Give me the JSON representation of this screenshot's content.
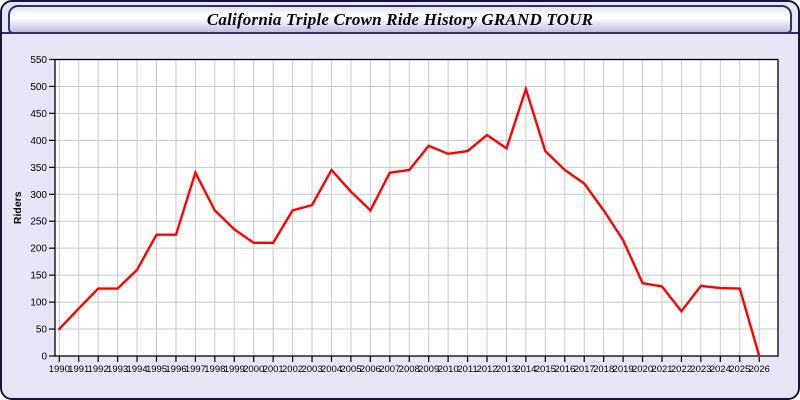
{
  "title_bar": {
    "title": "California Triple Crown Ride History GRAND TOUR"
  },
  "colors": {
    "window_background": "#E6E6F7",
    "window_border": "#16163E",
    "titlebar_border": "#30306B",
    "plot_background": "#FFFFFF",
    "plot_border": "#000000",
    "gridline": "#C9C9C9",
    "line": "#FF0000",
    "text": "#000000"
  },
  "chart_data": {
    "type": "line",
    "title": "California Triple Crown Ride History GRAND TOUR",
    "xlabel": "",
    "ylabel": "Riders",
    "series_name": "Riders",
    "x": [
      1990,
      1991,
      1992,
      1993,
      1994,
      1995,
      1996,
      1997,
      1998,
      1999,
      2000,
      2001,
      2002,
      2003,
      2004,
      2005,
      2006,
      2007,
      2008,
      2009,
      2010,
      2011,
      2012,
      2013,
      2014,
      2015,
      2016,
      2017,
      2018,
      2019,
      2020,
      2021,
      2022,
      2023,
      2024,
      2025,
      2026
    ],
    "values": [
      50,
      88,
      125,
      125,
      160,
      225,
      225,
      340,
      270,
      235,
      210,
      210,
      270,
      280,
      345,
      305,
      270,
      340,
      345,
      390,
      375,
      380,
      410,
      385,
      495,
      380,
      345,
      320,
      270,
      215,
      135,
      129,
      83,
      130,
      126,
      125,
      0
    ],
    "ylim": [
      0,
      550
    ],
    "ytick_step": 50,
    "grid": true,
    "legend": "none"
  }
}
